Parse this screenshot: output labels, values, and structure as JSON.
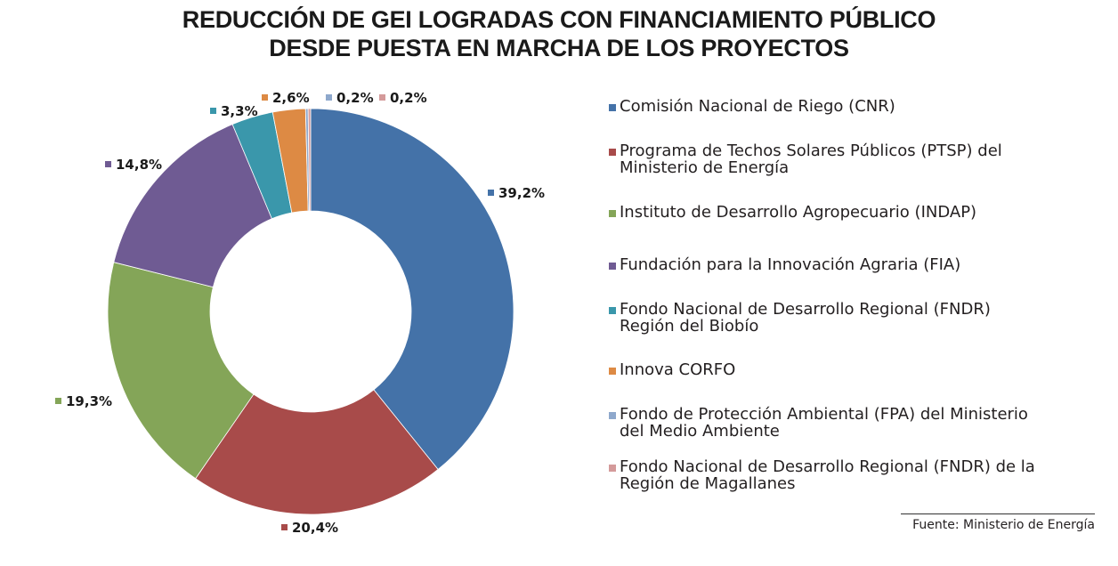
{
  "chart_data": {
    "type": "pie",
    "variant": "donut",
    "title_lines": [
      "REDUCCIÓN DE GEI LOGRADAS CON FINANCIAMIENTO PÚBLICO",
      "DESDE PUESTA EN MARCHA DE LOS PROYECTOS"
    ],
    "start": "top",
    "direction": "clockwise",
    "legend_position": "right",
    "slices": [
      {
        "name": "Comisión Nacional de Riego (CNR)",
        "value": 39.2,
        "label": "39,2%",
        "color": "#4472a8"
      },
      {
        "name": "Programa de Techos Solares Públicos (PTSP) del Ministerio de Energía",
        "value": 20.4,
        "label": "20,4%",
        "color": "#a84b4a"
      },
      {
        "name": "Instituto de Desarrollo Agropecuario (INDAP)",
        "value": 19.3,
        "label": "19,3%",
        "color": "#84a558"
      },
      {
        "name": "Fundación para la Innovación Agraria (FIA)",
        "value": 14.8,
        "label": "14,8%",
        "color": "#6f5b93"
      },
      {
        "name": "Fondo Nacional de Desarrollo Regional (FNDR) Región del Biobío",
        "value": 3.3,
        "label": "3,3%",
        "color": "#3a97ab"
      },
      {
        "name": "Innova CORFO",
        "value": 2.6,
        "label": "2,6%",
        "color": "#dd8a44"
      },
      {
        "name": "Fondo de Protección Ambiental (FPA) del Ministerio del Medio Ambiente",
        "value": 0.2,
        "label": "0,2%",
        "color": "#8ea8cc"
      },
      {
        "name": "Fondo Nacional de Desarrollo Regional (FNDR) de la Región de Magallanes",
        "value": 0.2,
        "label": "0,2%",
        "color": "#d49a9a"
      }
    ],
    "legend": [
      {
        "lines": [
          "Comisión Nacional de Riego (CNR)"
        ]
      },
      {
        "lines": [
          "Programa de Techos Solares Públicos (PTSP) del",
          "Ministerio de Energía"
        ]
      },
      {
        "lines": [
          "Instituto de Desarrollo Agropecuario (INDAP)"
        ]
      },
      {
        "lines": [
          "Fundación para la Innovación Agraria (FIA)"
        ]
      },
      {
        "lines": [
          "Fondo Nacional de Desarrollo Regional (FNDR)",
          "Región del Biobío"
        ]
      },
      {
        "lines": [
          "Innova CORFO"
        ]
      },
      {
        "lines": [
          "Fondo de Protección Ambiental (FPA) del Ministerio",
          "del Medio Ambiente"
        ]
      },
      {
        "lines": [
          "Fondo Nacional de Desarrollo Regional (FNDR) de la",
          "Región de Magallanes"
        ]
      }
    ],
    "source": "Fuente: Ministerio de Energía"
  }
}
